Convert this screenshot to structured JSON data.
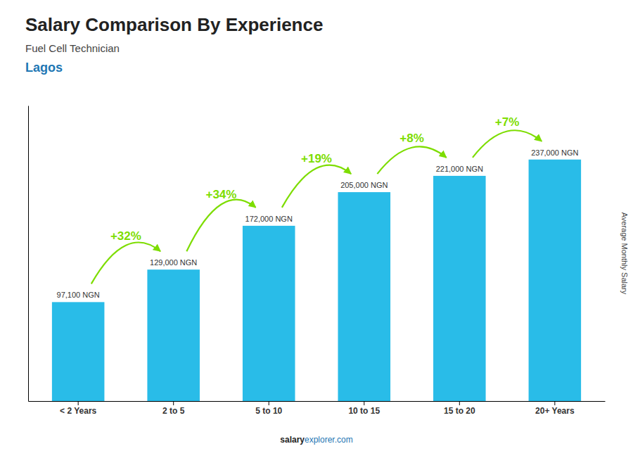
{
  "chart_data": {
    "type": "bar",
    "title": "Salary Comparison By Experience",
    "subtitle": "Fuel Cell Technician",
    "city": "Lagos",
    "ylabel": "Average Monthly Salary",
    "footer": [
      "salary",
      "explorer.com"
    ],
    "categories": [
      "< 2 Years",
      "2 to 5",
      "5 to 10",
      "10 to 15",
      "15 to 20",
      "20+ Years"
    ],
    "values": [
      97100,
      129000,
      172000,
      205000,
      221000,
      237000
    ],
    "value_labels": [
      "97,100 NGN",
      "129,000 NGN",
      "172,000 NGN",
      "205,000 NGN",
      "221,000 NGN",
      "237,000 NGN"
    ],
    "data_labels": true,
    "annotations": [
      {
        "text": "+32%",
        "color": "#7ddd00"
      },
      {
        "text": "+34%",
        "color": "#7ddd00"
      },
      {
        "text": "+19%",
        "color": "#7ddd00"
      },
      {
        "text": "+8%",
        "color": "#7ddd00"
      },
      {
        "text": "+7%",
        "color": "#7ddd00"
      }
    ],
    "color": "#29bce8",
    "ylim": [
      0,
      290000
    ],
    "tick_labels": "x",
    "grid": false
  }
}
